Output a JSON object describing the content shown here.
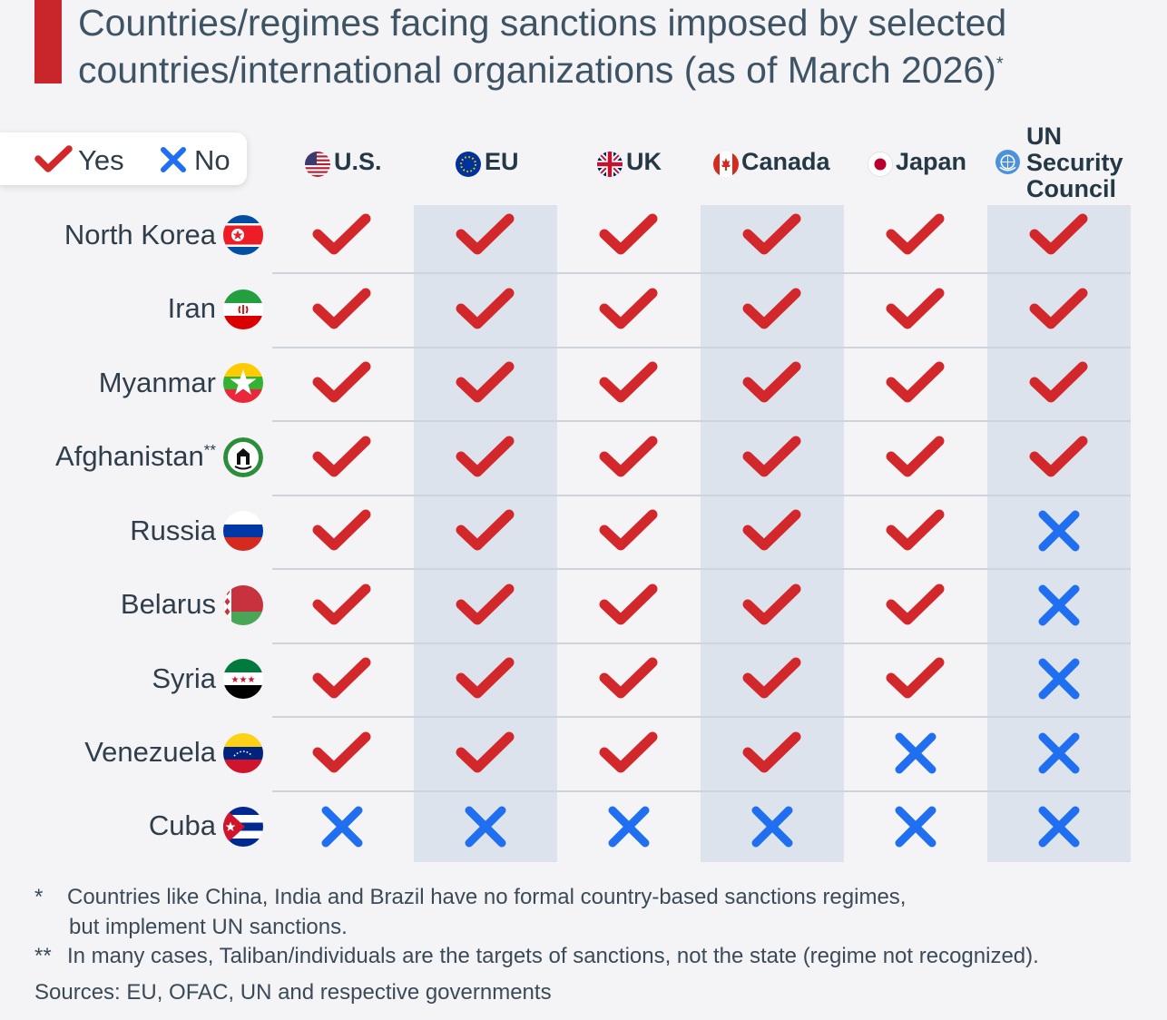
{
  "header": {
    "title_line1": "Countries/regimes facing sanctions imposed by selected",
    "title_line2": "countries/international organizations (as of March 2026)",
    "title_marker": "*"
  },
  "legend": {
    "yes_label": "Yes",
    "no_label": "No"
  },
  "chart_data": {
    "type": "table",
    "columns": [
      {
        "id": "us",
        "label": "U.S.",
        "icon": "us-flag-icon"
      },
      {
        "id": "eu",
        "label": "EU",
        "icon": "eu-flag-icon"
      },
      {
        "id": "uk",
        "label": "UK",
        "icon": "uk-flag-icon"
      },
      {
        "id": "canada",
        "label": "Canada",
        "icon": "canada-flag-icon"
      },
      {
        "id": "japan",
        "label": "Japan",
        "icon": "japan-flag-icon"
      },
      {
        "id": "un",
        "label": "UN Security Council",
        "label_lines": [
          "UN",
          "Security",
          "Council"
        ],
        "icon": "un-emblem-icon"
      }
    ],
    "rows": [
      {
        "label": "North Korea",
        "icon": "north-korea-flag-icon",
        "values": [
          true,
          true,
          true,
          true,
          true,
          true
        ]
      },
      {
        "label": "Iran",
        "icon": "iran-flag-icon",
        "values": [
          true,
          true,
          true,
          true,
          true,
          true
        ]
      },
      {
        "label": "Myanmar",
        "icon": "myanmar-flag-icon",
        "values": [
          true,
          true,
          true,
          true,
          true,
          true
        ]
      },
      {
        "label": "Afghanistan",
        "marker": "**",
        "icon": "afghanistan-flag-icon",
        "values": [
          true,
          true,
          true,
          true,
          true,
          true
        ]
      },
      {
        "label": "Russia",
        "icon": "russia-flag-icon",
        "values": [
          true,
          true,
          true,
          true,
          true,
          false
        ]
      },
      {
        "label": "Belarus",
        "icon": "belarus-flag-icon",
        "values": [
          true,
          true,
          true,
          true,
          true,
          false
        ]
      },
      {
        "label": "Syria",
        "icon": "syria-flag-icon",
        "values": [
          true,
          true,
          true,
          true,
          true,
          false
        ]
      },
      {
        "label": "Venezuela",
        "icon": "venezuela-flag-icon",
        "values": [
          true,
          true,
          true,
          true,
          false,
          false
        ]
      },
      {
        "label": "Cuba",
        "icon": "cuba-flag-icon",
        "values": [
          false,
          false,
          false,
          false,
          false,
          false
        ]
      }
    ],
    "colors": {
      "yes": "#d3282b",
      "no": "#1f6ff0",
      "band": "#dde3ec",
      "accent": "#c8262a"
    }
  },
  "footnotes": {
    "note1_marker": "*",
    "note1_line1": "Countries like China, India and Brazil have no formal country-based sanctions regimes,",
    "note1_line2": "but implement UN sanctions.",
    "note2_marker": "**",
    "note2_text": "In many cases, Taliban/individuals are the targets of sanctions, not the state (regime not recognized).",
    "sources": "Sources: EU, OFAC, UN and respective governments"
  }
}
